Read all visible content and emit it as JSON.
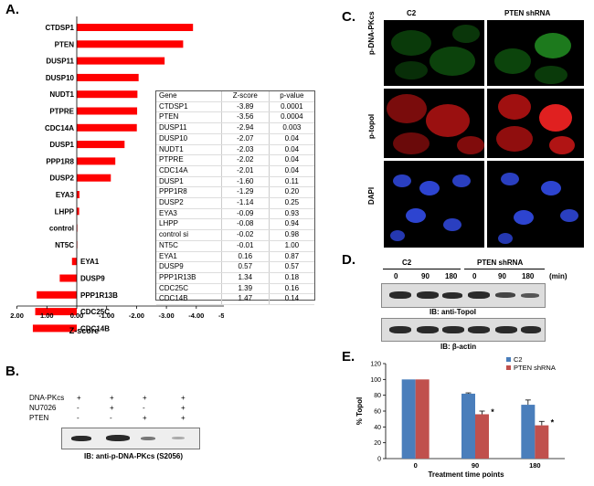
{
  "panelA": {
    "label": "A.",
    "xlabel": "Z-score",
    "table": {
      "headers": [
        "Gene",
        "Z-score",
        "p-value"
      ],
      "rows": [
        [
          "CTDSP1",
          "-3.89",
          "0.0001"
        ],
        [
          "PTEN",
          "-3.56",
          "0.0004"
        ],
        [
          "DUSP11",
          "-2.94",
          "0.003"
        ],
        [
          "DUSP10",
          "-2.07",
          "0.04"
        ],
        [
          "NUDT1",
          "-2.03",
          "0.04"
        ],
        [
          "PTPRE",
          "-2.02",
          "0.04"
        ],
        [
          "CDC14A",
          "-2.01",
          "0.04"
        ],
        [
          "DUSP1",
          "-1.60",
          "0.11"
        ],
        [
          "PPP1R8",
          "-1.29",
          "0.20"
        ],
        [
          "DUSP2",
          "-1.14",
          "0.25"
        ],
        [
          "EYA3",
          "-0.09",
          "0.93"
        ],
        [
          "LHPP",
          "-0.08",
          "0.94"
        ],
        [
          "control si",
          "-0.02",
          "0.98"
        ],
        [
          "NT5C",
          "-0.01",
          "1.00"
        ],
        [
          "EYA1",
          "0.16",
          "0.87"
        ],
        [
          "DUSP9",
          "0.57",
          "0.57"
        ],
        [
          "PPP1R13B",
          "1.34",
          "0.18"
        ],
        [
          "CDC25C",
          "1.39",
          "0.16"
        ],
        [
          "CDC14B",
          "1.47",
          "0.14"
        ]
      ]
    }
  },
  "chart_data": [
    {
      "type": "bar",
      "orientation": "horizontal",
      "categories": [
        "CTDSP1",
        "PTEN",
        "DUSP11",
        "DUSP10",
        "NUDT1",
        "PTPRE",
        "CDC14A",
        "DUSP1",
        "PPP1R8",
        "DUSP2",
        "EYA3",
        "LHPP",
        "control",
        "NT5C",
        "EYA1",
        "DUSP9",
        "PPP1R13B",
        "CDC25C",
        "CDC14B"
      ],
      "values": [
        -3.89,
        -3.56,
        -2.94,
        -2.07,
        -2.03,
        -2.02,
        -2.01,
        -1.6,
        -1.29,
        -1.14,
        -0.09,
        -0.08,
        -0.02,
        -0.01,
        0.16,
        0.57,
        1.34,
        1.39,
        1.47
      ],
      "xlabel": "Z-score",
      "xticks": [
        "2.00",
        "1.00",
        "0.00",
        "-1.00",
        "-2.00",
        "-3.00",
        "-4.00",
        "-5.00"
      ],
      "xlim": [
        2.0,
        -5.0
      ],
      "bar_color": "#ff0000"
    },
    {
      "type": "bar",
      "categories": [
        "0",
        "90",
        "180"
      ],
      "series": [
        {
          "name": "C2",
          "values": [
            100,
            82,
            68
          ],
          "errors": [
            0,
            1,
            6
          ]
        },
        {
          "name": "PTEN shRNA",
          "values": [
            100,
            56,
            42
          ],
          "errors": [
            0,
            4,
            5
          ]
        }
      ],
      "ylabel": "% TopoI",
      "xlabel": "Treatment time points",
      "ylim": [
        0,
        120
      ],
      "yticks": [
        "0",
        "20",
        "40",
        "60",
        "80",
        "100",
        "120"
      ],
      "significance": [
        "",
        "*",
        "*"
      ],
      "legend": "top-right",
      "colors": [
        "#4a7ebb",
        "#c0504d"
      ]
    }
  ],
  "panelB": {
    "label": "B.",
    "rows": [
      {
        "name": "DNA-PKcs",
        "marks": [
          "+",
          "+",
          "+",
          "+"
        ]
      },
      {
        "name": "NU7026",
        "marks": [
          "-",
          "+",
          "-",
          "+"
        ]
      },
      {
        "name": "PTEN",
        "marks": [
          "-",
          "-",
          "+",
          "+"
        ]
      }
    ],
    "caption": "IB: anti-p-DNA-PKcs (S2056)"
  },
  "panelC": {
    "label": "C.",
    "cols": [
      "C2",
      "PTEN shRNA"
    ],
    "rows": [
      "p-DNA-PKcs",
      "p-topoI",
      "DAPI"
    ]
  },
  "panelD": {
    "label": "D.",
    "groups": [
      "C2",
      "PTEN shRNA"
    ],
    "times": [
      "0",
      "90",
      "180",
      "0",
      "90",
      "180"
    ],
    "unit": "(min)",
    "blot1": "IB: anti-TopoI",
    "blot2": "IB: β-actin"
  },
  "panelE": {
    "label": "E.",
    "legend": [
      "C2",
      "PTEN shRNA"
    ]
  }
}
